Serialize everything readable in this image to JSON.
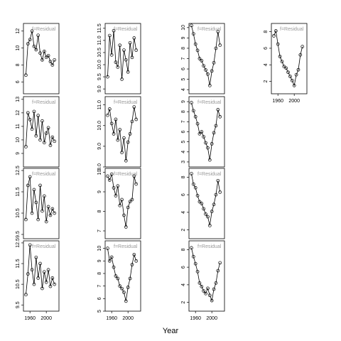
{
  "x_label": "Year",
  "chart_data": [
    {
      "type": "line",
      "markers": true,
      "label": "f=Residual",
      "x": [
        1950,
        1955,
        1960,
        1965,
        1970,
        1975,
        1980,
        1985,
        1990,
        1995,
        2000,
        2005,
        2010,
        2015,
        2020
      ],
      "values": [
        6.8,
        10.5,
        11,
        12,
        10.2,
        9.8,
        11.5,
        9.4,
        8.6,
        9.6,
        8.9,
        9.1,
        8.4,
        8.0,
        8.6
      ],
      "xlim": [
        1944,
        2031
      ],
      "ylim": [
        4.6,
        12.9
      ],
      "yticks": [
        6,
        8,
        10,
        12
      ]
    },
    {
      "type": "line",
      "markers": true,
      "label": "f=Residual",
      "x": [
        1950,
        1955,
        1960,
        1965,
        1970,
        1975,
        1980,
        1985,
        1990,
        1995,
        2000,
        2005,
        2010,
        2015,
        2020
      ],
      "values": [
        9.5,
        12,
        11.5,
        10.8,
        12.1,
        10.3,
        11.8,
        10,
        11.4,
        9.8,
        10.5,
        10.9,
        9.6,
        10.2,
        9.9
      ],
      "xlim": [
        1944,
        2031
      ],
      "ylim": [
        8.0,
        13.2
      ],
      "yticks": [
        9,
        10,
        11,
        12,
        13
      ]
    },
    {
      "type": "line",
      "markers": true,
      "label": "f=Residual",
      "x": [
        1950,
        1955,
        1960,
        1965,
        1970,
        1975,
        1980,
        1985,
        1990,
        1995,
        2000,
        2005,
        2010,
        2015,
        2020
      ],
      "values": [
        10.2,
        11.8,
        12.2,
        10.5,
        11.6,
        11,
        10.2,
        11.8,
        10.6,
        11.3,
        10.1,
        10.8,
        10.4,
        10.7,
        10.5
      ],
      "xlim": [
        1944,
        2031
      ],
      "ylim": [
        9.3,
        12.6
      ],
      "yticks": [
        9.5,
        10.5,
        11.5,
        12.5
      ]
    },
    {
      "type": "line",
      "markers": true,
      "label": "f=Residual",
      "x": [
        1950,
        1955,
        1960,
        1965,
        1970,
        1975,
        1980,
        1985,
        1990,
        1995,
        2000,
        2005,
        2010,
        2015,
        2020
      ],
      "values": [
        10,
        11,
        12.4,
        11.2,
        10.5,
        11.8,
        10.8,
        11.5,
        10.3,
        11.1,
        10.6,
        11.2,
        10.4,
        10.8,
        10.5
      ],
      "xlim": [
        1944,
        2031
      ],
      "ylim": [
        9.2,
        12.6
      ],
      "yticks": [
        9.5,
        10.5,
        11.5,
        12.5
      ],
      "xticks": [
        1960,
        2000
      ]
    },
    {
      "type": "line",
      "markers": true,
      "label": "f=Residual",
      "x": [
        1950,
        1955,
        1960,
        1965,
        1970,
        1975,
        1980,
        1985,
        1990,
        1995,
        2000,
        2005,
        2010,
        2015,
        2020
      ],
      "values": [
        9.5,
        11.2,
        10.4,
        11.4,
        10.1,
        9.9,
        10.8,
        9.4,
        10.6,
        10.2,
        9.7,
        10.9,
        10.3,
        11.1,
        10.6
      ],
      "xlim": [
        1944,
        2031
      ],
      "ylim": [
        8.8,
        11.7
      ],
      "yticks": [
        {
          "value": 9,
          "label": "9.0"
        },
        9.5,
        {
          "value": 10,
          "label": "10.0"
        },
        10.5,
        {
          "value": 11,
          "label": "11.0"
        },
        11.5
      ]
    },
    {
      "type": "line",
      "markers": true,
      "label": "f=Residual",
      "x": [
        1950,
        1955,
        1960,
        1965,
        1970,
        1975,
        1980,
        1985,
        1990,
        1995,
        2000,
        2005,
        2010,
        2015,
        2020
      ],
      "values": [
        10.5,
        10.8,
        10.1,
        9.6,
        10.3,
        9.3,
        9.8,
        8.7,
        9.4,
        8.3,
        9.2,
        9.6,
        10.2,
        10.9,
        10.3
      ],
      "xlim": [
        1944,
        2031
      ],
      "ylim": [
        8.0,
        11.4
      ],
      "yticks": [
        {
          "value": 8,
          "label": "8.0"
        },
        {
          "value": 9,
          "label": "9.0"
        },
        {
          "value": 10,
          "label": "10.0"
        },
        {
          "value": 11,
          "label": "11.0"
        }
      ]
    },
    {
      "type": "line",
      "markers": true,
      "label": "f=Residual",
      "x": [
        1950,
        1955,
        1960,
        1965,
        1970,
        1975,
        1980,
        1985,
        1990,
        1995,
        2000,
        2005,
        2010,
        2015,
        2020
      ],
      "values": [
        9.8,
        9.6,
        9.9,
        9.2,
        8.8,
        9.3,
        8.3,
        8.6,
        7.8,
        7.2,
        8.2,
        8.5,
        8.6,
        9.8,
        9.4
      ],
      "xlim": [
        1944,
        2031
      ],
      "ylim": [
        6.6,
        10.2
      ],
      "yticks": [
        7,
        8,
        9,
        10
      ]
    },
    {
      "type": "line",
      "markers": true,
      "label": "f=Residual",
      "x": [
        1950,
        1955,
        1960,
        1965,
        1970,
        1975,
        1980,
        1985,
        1990,
        1995,
        2000,
        2005,
        2010,
        2015,
        2020
      ],
      "values": [
        10,
        9,
        9.3,
        8.5,
        7.8,
        7.6,
        7.0,
        6.8,
        6.5,
        5.8,
        6.9,
        7.6,
        8.7,
        9.5,
        9.0
      ],
      "xlim": [
        1944,
        2031
      ],
      "ylim": [
        5,
        10.6
      ],
      "yticks": [
        5,
        6,
        7,
        8,
        9,
        10
      ],
      "xticks": [
        1960,
        2000
      ]
    },
    {
      "type": "line",
      "markers": true,
      "label": "f=Residual",
      "x": [
        1950,
        1955,
        1960,
        1965,
        1970,
        1975,
        1980,
        1985,
        1990,
        1995,
        2000,
        2005,
        2010,
        2015,
        2020
      ],
      "values": [
        10.2,
        9.4,
        8.4,
        7.8,
        7.0,
        6.8,
        6.3,
        5.9,
        5.5,
        4.4,
        5.8,
        6.6,
        8.0,
        9.6,
        8.3
      ],
      "xlim": [
        1944,
        2031
      ],
      "ylim": [
        3.6,
        10.4
      ],
      "yticks": [
        4,
        5,
        6,
        7,
        8,
        9,
        10
      ]
    },
    {
      "type": "line",
      "markers": true,
      "label": "f=Residual",
      "x": [
        1950,
        1955,
        1960,
        1965,
        1970,
        1975,
        1980,
        1985,
        1990,
        1995,
        2000,
        2005,
        2010,
        2015,
        2020
      ],
      "values": [
        8.9,
        8.1,
        7.5,
        6.8,
        5.8,
        6.0,
        5.5,
        4.9,
        4.4,
        3.2,
        4.8,
        5.9,
        6.6,
        8.2,
        7.5
      ],
      "xlim": [
        1944,
        2031
      ],
      "ylim": [
        2.5,
        9.5
      ],
      "yticks": [
        3,
        4,
        5,
        6,
        7,
        8,
        9
      ]
    },
    {
      "type": "line",
      "markers": true,
      "label": "f=Residual",
      "x": [
        1950,
        1955,
        1960,
        1965,
        1970,
        1975,
        1980,
        1985,
        1990,
        1995,
        2000,
        2005,
        2010,
        2015,
        2020
      ],
      "values": [
        8.4,
        7.2,
        6.8,
        5.9,
        5.2,
        5.0,
        4.4,
        3.8,
        3.5,
        2.5,
        4.1,
        4.9,
        6.0,
        7.6,
        6.3
      ],
      "xlim": [
        1944,
        2031
      ],
      "ylim": [
        1,
        9
      ],
      "yticks": [
        2,
        4,
        6,
        8
      ]
    },
    {
      "type": "line",
      "markers": true,
      "label": "f=Residual",
      "x": [
        1950,
        1955,
        1960,
        1965,
        1970,
        1975,
        1980,
        1985,
        1990,
        1995,
        2000,
        2005,
        2010,
        2015,
        2020
      ],
      "values": [
        8.2,
        7.2,
        6.4,
        5.5,
        4.2,
        3.8,
        3.3,
        3.0,
        3.6,
        2.8,
        2.2,
        3.5,
        4.2,
        5.6,
        6.5
      ],
      "xlim": [
        1944,
        2031
      ],
      "ylim": [
        1,
        9
      ],
      "yticks": [
        2,
        4,
        6,
        8
      ],
      "xticks": [
        1960,
        2000
      ]
    },
    {
      "type": "line",
      "markers": true,
      "label": "f=Residual",
      "x": [
        1950,
        1955,
        1960,
        1965,
        1970,
        1975,
        1980,
        1985,
        1990,
        1995,
        2000,
        2005,
        2010,
        2015,
        2020
      ],
      "values": [
        7.5,
        8.1,
        6.5,
        5.0,
        4.4,
        3.8,
        3.6,
        3.1,
        2.6,
        2.1,
        1.5,
        2.8,
        3.4,
        5.2,
        6.2
      ],
      "xlim": [
        1944,
        2031
      ],
      "ylim": [
        0.5,
        9
      ],
      "yticks": [
        2,
        4,
        6,
        8
      ],
      "xticks": [
        1960,
        2000
      ]
    }
  ]
}
